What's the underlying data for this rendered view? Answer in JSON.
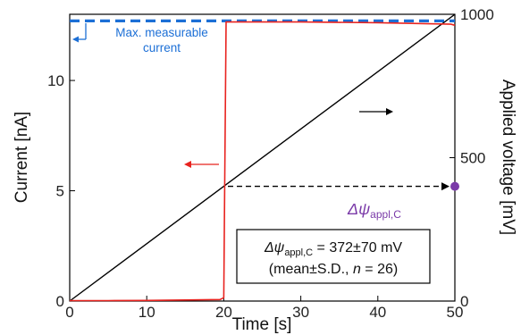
{
  "chart_data": {
    "type": "line",
    "xlabel": "Time [s]",
    "ylabel_left": "Current [nA]",
    "ylabel_right": "Applied voltage [mV]",
    "xlim": [
      0,
      50
    ],
    "ylim_left": [
      0,
      13
    ],
    "ylim_right": [
      0,
      1000
    ],
    "x_ticks": [
      0,
      10,
      20,
      30,
      40,
      50
    ],
    "y_left_ticks": [
      0,
      5,
      10
    ],
    "y_right_ticks": [
      0,
      500,
      1000
    ],
    "grid": false,
    "series": [
      {
        "axis": "left",
        "color": "#e8231f",
        "x": [
          0,
          5,
          10,
          15,
          19.5,
          20.0,
          20.15,
          20.3,
          30,
          40,
          49.5,
          50
        ],
        "y": [
          0.02,
          0.02,
          0.03,
          0.05,
          0.07,
          0.15,
          6.5,
          12.65,
          12.65,
          12.62,
          12.55,
          12.5
        ]
      },
      {
        "axis": "right",
        "color": "#000000",
        "x": [
          0,
          50
        ],
        "y": [
          0,
          1000
        ]
      }
    ],
    "reference_lines": [
      {
        "axis": "left",
        "orientation": "horizontal",
        "y": 12.7,
        "color": "#1c6fd6",
        "style": "dashed"
      }
    ],
    "annotations": {
      "max_label": [
        "Max. measurable",
        "current"
      ],
      "delta_psi_symbol": "Δψ",
      "delta_psi_sub": "appl,C",
      "box_line1_value": " = 372±70 mV",
      "box_line2_a": "(mean±S.D., ",
      "box_line2_n": "n",
      "box_line2_b": " = 26)"
    },
    "marker": {
      "x": 50,
      "y_right": 400,
      "color": "#7a3aa8"
    },
    "crossing": {
      "x": 20.3,
      "y_right": 400
    },
    "colors": {
      "current": "#e8231f",
      "voltage": "#000000",
      "max": "#1c6fd6",
      "marker": "#7a3aa8"
    }
  }
}
